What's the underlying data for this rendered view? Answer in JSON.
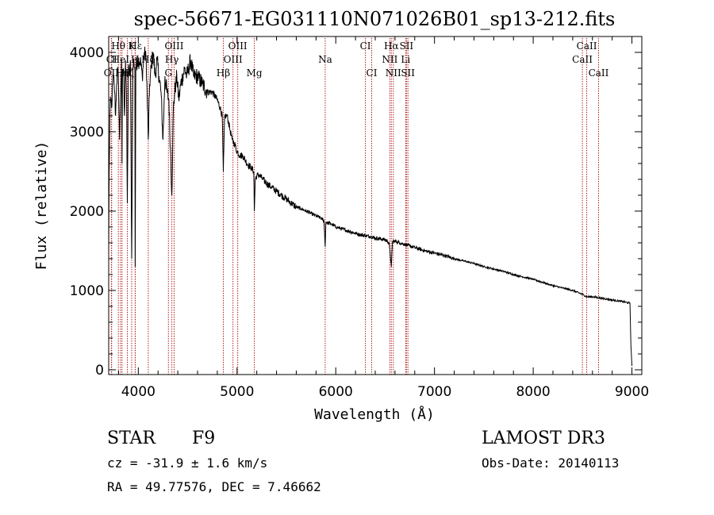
{
  "chart_data": {
    "type": "line",
    "title": "spec-56671-EG031110N071026B01_sp13-212.fits",
    "xlabel": "Wavelength (Å)",
    "ylabel": "Flux (relative)",
    "xlim": [
      3700,
      9100
    ],
    "ylim": [
      -60,
      4200
    ],
    "xticks": [
      4000,
      5000,
      6000,
      7000,
      8000,
      9000
    ],
    "xtick_labels": [
      "4000",
      "5000",
      "6000",
      "7000",
      "8000",
      "9000"
    ],
    "yticks": [
      0,
      1000,
      2000,
      3000,
      4000
    ],
    "ytick_labels": [
      "0",
      "1000",
      "2000",
      "3000",
      "4000"
    ],
    "line_color": "#000000",
    "marker_color": "#b22222",
    "series": [
      {
        "name": "spectrum",
        "x": [
          3700,
          3705,
          3712,
          3720,
          3730,
          3740,
          3750,
          3760,
          3770,
          3780,
          3790,
          3800,
          3810,
          3820,
          3830,
          3835,
          3840,
          3850,
          3860,
          3870,
          3880,
          3889,
          3900,
          3910,
          3920,
          3933,
          3945,
          3955,
          3965,
          3968,
          3975,
          3990,
          4000,
          4020,
          4040,
          4060,
          4080,
          4101,
          4115,
          4130,
          4150,
          4170,
          4190,
          4210,
          4230,
          4250,
          4270,
          4290,
          4310,
          4325,
          4340,
          4355,
          4370,
          4390,
          4410,
          4430,
          4450,
          4470,
          4490,
          4510,
          4530,
          4560,
          4600,
          4650,
          4700,
          4750,
          4800,
          4830,
          4850,
          4861,
          4875,
          4900,
          4925,
          4950,
          4975,
          5000,
          5030,
          5060,
          5100,
          5140,
          5170,
          5175,
          5185,
          5200,
          5230,
          5260,
          5300,
          5350,
          5400,
          5450,
          5500,
          5550,
          5600,
          5650,
          5700,
          5750,
          5800,
          5850,
          5880,
          5893,
          5900,
          5920,
          5950,
          6000,
          6050,
          6100,
          6150,
          6200,
          6250,
          6300,
          6350,
          6400,
          6450,
          6500,
          6540,
          6563,
          6575,
          6600,
          6650,
          6700,
          6750,
          6800,
          6900,
          7000,
          7100,
          7200,
          7300,
          7400,
          7500,
          7600,
          7700,
          7800,
          7900,
          8000,
          8100,
          8200,
          8300,
          8400,
          8500,
          8542,
          8600,
          8700,
          8800,
          8900,
          8980,
          8990,
          9000
        ],
        "y": [
          1500,
          2500,
          3200,
          3400,
          3300,
          3600,
          3700,
          3500,
          3200,
          3600,
          3800,
          3600,
          2900,
          3400,
          3900,
          2600,
          3700,
          3800,
          3200,
          3900,
          3500,
          2100,
          3800,
          3700,
          3900,
          1400,
          3800,
          3900,
          3800,
          1300,
          3800,
          3900,
          3900,
          3900,
          3700,
          4000,
          3900,
          2900,
          3600,
          3800,
          4000,
          3700,
          3900,
          3700,
          3500,
          2900,
          3700,
          3500,
          3400,
          2800,
          2200,
          3300,
          3500,
          3700,
          3400,
          3600,
          3700,
          3800,
          3700,
          3800,
          3900,
          3700,
          3700,
          3600,
          3500,
          3500,
          3400,
          3300,
          3200,
          2500,
          3200,
          3200,
          3050,
          2900,
          2850,
          2750,
          2700,
          2700,
          2600,
          2550,
          2500,
          2000,
          2400,
          2450,
          2450,
          2400,
          2350,
          2300,
          2250,
          2200,
          2150,
          2100,
          2050,
          2030,
          2000,
          1970,
          1940,
          1910,
          1880,
          1550,
          1860,
          1850,
          1840,
          1800,
          1780,
          1760,
          1740,
          1720,
          1700,
          1690,
          1680,
          1660,
          1650,
          1640,
          1600,
          1300,
          1620,
          1620,
          1600,
          1580,
          1560,
          1540,
          1500,
          1470,
          1440,
          1400,
          1370,
          1340,
          1300,
          1270,
          1240,
          1200,
          1170,
          1140,
          1100,
          1060,
          1030,
          1000,
          950,
          920,
          920,
          900,
          880,
          860,
          840,
          300,
          50
        ]
      }
    ],
    "line_markers": [
      {
        "label": "CI",
        "wavelength": 3730,
        "row": 2
      },
      {
        "label": "OII",
        "wavelength": 3727,
        "row": 3
      },
      {
        "label": "Hθ",
        "wavelength": 3798,
        "row": 1
      },
      {
        "label": "HeI",
        "wavelength": 3820,
        "row": 2
      },
      {
        "label": "Hη",
        "wavelength": 3835,
        "row": 3
      },
      {
        "label": "K",
        "wavelength": 3933,
        "row": 1
      },
      {
        "label": "H",
        "wavelength": 3968,
        "row": 2
      },
      {
        "label": "Hζ",
        "wavelength": 3889,
        "row": 3
      },
      {
        "label": "Hε",
        "wavelength": 3970,
        "row": 1
      },
      {
        "label": "Hδ",
        "wavelength": 4101,
        "row": 2
      },
      {
        "label": "OIII",
        "wavelength": 4363,
        "row": 1
      },
      {
        "label": "Hγ",
        "wavelength": 4340,
        "row": 2
      },
      {
        "label": "G",
        "wavelength": 4305,
        "row": 3
      },
      {
        "label": "OIII",
        "wavelength": 5007,
        "row": 1
      },
      {
        "label": "OIII",
        "wavelength": 4959,
        "row": 2
      },
      {
        "label": "Hβ",
        "wavelength": 4861,
        "row": 3
      },
      {
        "label": "Mg",
        "wavelength": 5175,
        "row": 3
      },
      {
        "label": "Na",
        "wavelength": 5893,
        "row": 2
      },
      {
        "label": "CI",
        "wavelength": 6300,
        "row": 1
      },
      {
        "label": "CI",
        "wavelength": 6364,
        "row": 3
      },
      {
        "label": "Hα",
        "wavelength": 6563,
        "row": 1
      },
      {
        "label": "NII",
        "wavelength": 6548,
        "row": 2
      },
      {
        "label": "NII",
        "wavelength": 6583,
        "row": 3
      },
      {
        "label": "SII",
        "wavelength": 6716,
        "row": 1
      },
      {
        "label": "Li",
        "wavelength": 6708,
        "row": 2
      },
      {
        "label": "SII",
        "wavelength": 6731,
        "row": 3
      },
      {
        "label": "CaII",
        "wavelength": 8542,
        "row": 1
      },
      {
        "label": "CaII",
        "wavelength": 8498,
        "row": 2
      },
      {
        "label": "CaII",
        "wavelength": 8662,
        "row": 3
      }
    ]
  },
  "info": {
    "class_label": "STAR",
    "subclass": "F9",
    "survey": "LAMOST DR3",
    "cz": "cz = -31.9 ± 1.6 km/s",
    "obs_date": "Obs-Date: 20140113",
    "coords": "RA =  49.77576, DEC =   7.46662"
  }
}
